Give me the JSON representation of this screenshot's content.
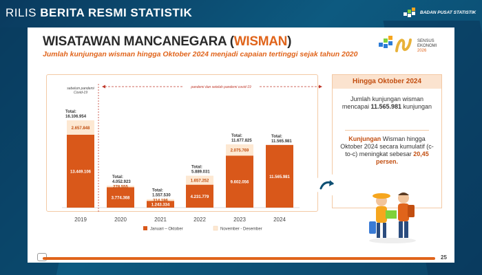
{
  "header": {
    "rilis_light": "RILIS",
    "rilis_bold": "BERITA RESMI STATISTIK",
    "agency": "BADAN PUSAT STATISTIK"
  },
  "slide": {
    "title_main": "WISATAWAN MANCANEGARA (",
    "title_accent": "WISMAN",
    "title_end": ")",
    "subtitle": "Jumlah kunjungan wisman hingga Oktober 2024 menjadi capaian tertinggi sejak tahun 2020",
    "sensus_line1": "SENSUS",
    "sensus_line2": "EKONOMI",
    "sensus_line3": "2026",
    "page_number": "25"
  },
  "chart_data": {
    "type": "bar",
    "stacked": true,
    "categories": [
      "2019",
      "2020",
      "2021",
      "2022",
      "2023",
      "2024"
    ],
    "series": [
      {
        "name": "Januari – Oktober",
        "values": [
          13449106,
          3774368,
          1243334,
          4231779,
          9602056,
          11565981
        ],
        "labels": [
          "13.449.106",
          "3.774.368",
          "1.243.334",
          "4.231.779",
          "9.602.056",
          "11.565.981"
        ],
        "color": "#d9581a"
      },
      {
        "name": "November - Desember",
        "values": [
          2657848,
          278555,
          314196,
          1657252,
          2075769,
          null
        ],
        "labels": [
          "2.657.848",
          "278.555",
          "314.196",
          "1.657.252",
          "2.075.769",
          ""
        ],
        "color": "#fde8d2"
      }
    ],
    "totals": [
      16106954,
      4052923,
      1557530,
      5889031,
      11677825,
      11565981
    ],
    "total_prefix": "Total:",
    "total_labels": [
      "16.106.954",
      "4.052.923",
      "1.557.530",
      "5.889.031",
      "11.677.825",
      "11.565.981"
    ],
    "ylim": [
      0,
      17000000
    ],
    "legend_position": "bottom",
    "annotations": {
      "pre_pandemic": "sebelum pandemi Covid-19",
      "pandemic": "pandemi dan setelah pandemi covid-19"
    }
  },
  "info": {
    "header": "Hingga Oktober 2024",
    "p1_before": "Jumlah kunjungan wisman mencapai ",
    "p1_value": "11.565.981",
    "p1_after": " kunjungan",
    "p2_hl1": "Kunjungan",
    "p2_mid": " Wisman hingga Oktober 2024 secara kumulatif (c-to-c) meningkat sebesar ",
    "p2_hl2": "20,45 persen."
  },
  "colors": {
    "accent": "#e0641b",
    "bar_main": "#d9581a",
    "bar_light": "#fde8d2",
    "background": "#0d5a80"
  }
}
